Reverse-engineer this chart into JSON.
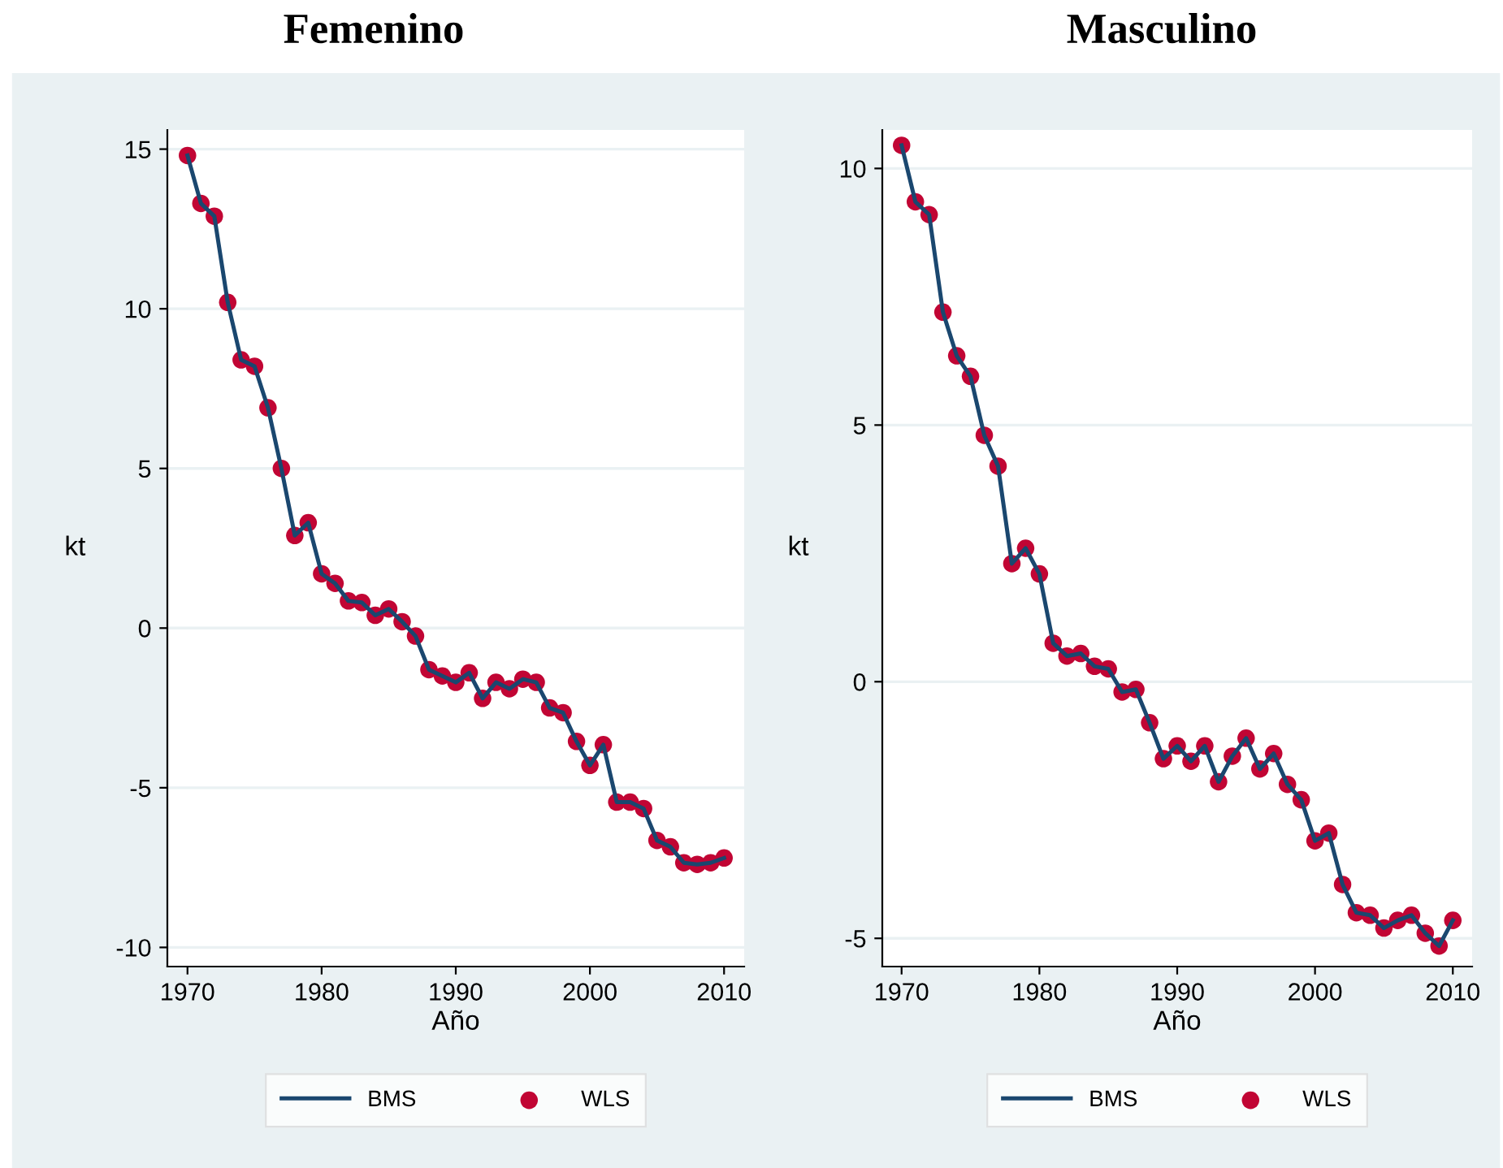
{
  "chart_data": [
    {
      "type": "line",
      "title": "Femenino",
      "xlabel": "Año",
      "ylabel": "kt",
      "x": [
        1970,
        1971,
        1972,
        1973,
        1974,
        1975,
        1976,
        1977,
        1978,
        1979,
        1980,
        1981,
        1982,
        1983,
        1984,
        1985,
        1986,
        1987,
        1988,
        1989,
        1990,
        1991,
        1992,
        1993,
        1994,
        1995,
        1996,
        1997,
        1998,
        1999,
        2000,
        2001,
        2002,
        2003,
        2004,
        2005,
        2006,
        2007,
        2008,
        2009,
        2010
      ],
      "series": [
        {
          "name": "BMS",
          "type": "line",
          "color": "#1a476f",
          "marker": "none",
          "line_style": "solid",
          "values": [
            14.8,
            13.3,
            12.9,
            10.2,
            8.4,
            8.2,
            6.9,
            5.0,
            2.9,
            3.3,
            1.7,
            1.4,
            0.85,
            0.8,
            0.4,
            0.6,
            0.2,
            -0.25,
            -1.3,
            -1.5,
            -1.7,
            -1.4,
            -2.2,
            -1.7,
            -1.9,
            -1.6,
            -1.7,
            -2.5,
            -2.65,
            -3.55,
            -4.3,
            -3.65,
            -5.45,
            -5.45,
            -5.65,
            -6.65,
            -6.85,
            -7.35,
            -7.4,
            -7.35,
            -7.2
          ]
        },
        {
          "name": "WLS",
          "type": "scatter",
          "color": "#c10534",
          "marker": "circle",
          "values": [
            14.8,
            13.3,
            12.9,
            10.2,
            8.4,
            8.2,
            6.9,
            5.0,
            2.9,
            3.3,
            1.7,
            1.4,
            0.85,
            0.8,
            0.4,
            0.6,
            0.2,
            -0.25,
            -1.3,
            -1.5,
            -1.7,
            -1.4,
            -2.2,
            -1.7,
            -1.9,
            -1.6,
            -1.7,
            -2.5,
            -2.65,
            -3.55,
            -4.3,
            -3.65,
            -5.45,
            -5.45,
            -5.65,
            -6.65,
            -6.85,
            -7.35,
            -7.4,
            -7.35,
            -7.2
          ]
        }
      ],
      "xlim": [
        1968.5,
        2011.5
      ],
      "xticks": [
        1970,
        1980,
        1990,
        2000,
        2010
      ],
      "ylim": [
        -10.6,
        15.6
      ],
      "yticks": [
        -10,
        -5,
        0,
        5,
        10,
        15
      ],
      "grid": "y",
      "legend": "bottom"
    },
    {
      "type": "line",
      "title": "Masculino",
      "xlabel": "Año",
      "ylabel": "kt",
      "x": [
        1970,
        1971,
        1972,
        1973,
        1974,
        1975,
        1976,
        1977,
        1978,
        1979,
        1980,
        1981,
        1982,
        1983,
        1984,
        1985,
        1986,
        1987,
        1988,
        1989,
        1990,
        1991,
        1992,
        1993,
        1994,
        1995,
        1996,
        1997,
        1998,
        1999,
        2000,
        2001,
        2002,
        2003,
        2004,
        2005,
        2006,
        2007,
        2008,
        2009,
        2010
      ],
      "series": [
        {
          "name": "BMS",
          "type": "line",
          "color": "#1a476f",
          "marker": "none",
          "line_style": "solid",
          "values": [
            10.45,
            9.35,
            9.1,
            7.2,
            6.35,
            5.95,
            4.8,
            4.2,
            2.3,
            2.6,
            2.1,
            0.75,
            0.5,
            0.55,
            0.3,
            0.25,
            -0.2,
            -0.15,
            -0.8,
            -1.5,
            -1.25,
            -1.55,
            -1.25,
            -1.95,
            -1.45,
            -1.1,
            -1.7,
            -1.4,
            -2.0,
            -2.3,
            -3.1,
            -2.95,
            -3.95,
            -4.5,
            -4.55,
            -4.8,
            -4.65,
            -4.55,
            -4.9,
            -5.15,
            -4.65
          ]
        },
        {
          "name": "WLS",
          "type": "scatter",
          "color": "#c10534",
          "marker": "circle",
          "values": [
            10.45,
            9.35,
            9.1,
            7.2,
            6.35,
            5.95,
            4.8,
            4.2,
            2.3,
            2.6,
            2.1,
            0.75,
            0.5,
            0.55,
            0.3,
            0.25,
            -0.2,
            -0.15,
            -0.8,
            -1.5,
            -1.25,
            -1.55,
            -1.25,
            -1.95,
            -1.45,
            -1.1,
            -1.7,
            -1.4,
            -2.0,
            -2.3,
            -3.1,
            -2.95,
            -3.95,
            -4.5,
            -4.55,
            -4.8,
            -4.65,
            -4.55,
            -4.9,
            -5.15,
            -4.65
          ]
        }
      ],
      "xlim": [
        1968.6,
        2011.4
      ],
      "xticks": [
        1970,
        1980,
        1990,
        2000,
        2010
      ],
      "ylim": [
        -5.55,
        10.75
      ],
      "yticks": [
        -5,
        0,
        5,
        10
      ],
      "grid": "y",
      "legend": "bottom"
    }
  ]
}
